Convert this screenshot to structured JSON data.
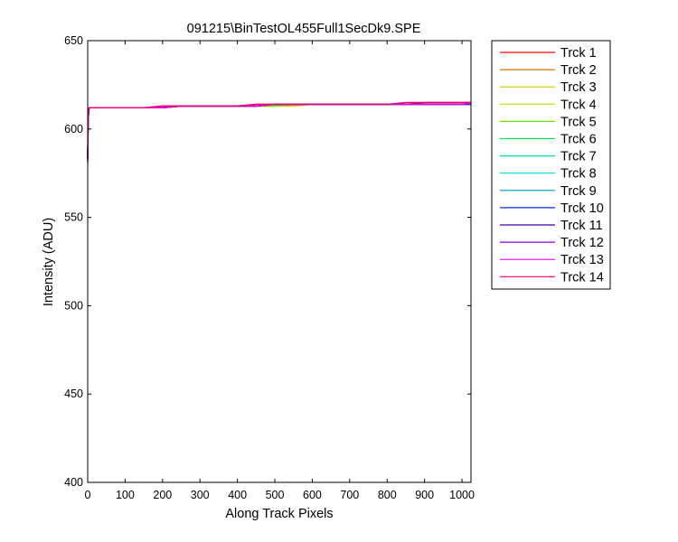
{
  "chart_data": {
    "type": "line",
    "title": "091215\\BinTestOL455Full1SecDk9.SPE",
    "xlabel": "Along Track Pixels",
    "ylabel": "Intensity (ADU)",
    "xlim": [
      0,
      1024
    ],
    "ylim": [
      400,
      650
    ],
    "xticks": [
      0,
      100,
      200,
      300,
      400,
      500,
      600,
      700,
      800,
      900,
      1000
    ],
    "yticks": [
      400,
      450,
      500,
      550,
      600,
      650
    ],
    "grid": false,
    "legend_position": "outside-right-top",
    "x": [
      0,
      1,
      2,
      3,
      4,
      5,
      10,
      20,
      50,
      100,
      150,
      200,
      250,
      300,
      350,
      400,
      450,
      500,
      550,
      600,
      650,
      700,
      750,
      800,
      850,
      900,
      950,
      1000,
      1023
    ],
    "series": [
      {
        "name": "Trck 1",
        "color": "#ff0000",
        "values": [
          581,
          600,
          608,
          611,
          612,
          612,
          612,
          612,
          612,
          612,
          612,
          613,
          613,
          613,
          613,
          613,
          614,
          614,
          614,
          614,
          614,
          614,
          614,
          614,
          614,
          615,
          615,
          615,
          615
        ]
      },
      {
        "name": "Trck 2",
        "color": "#e07000",
        "values": [
          582,
          600,
          608,
          610,
          611,
          612,
          612,
          612,
          612,
          612,
          612,
          612,
          613,
          613,
          613,
          613,
          613,
          613,
          614,
          614,
          614,
          614,
          614,
          614,
          614,
          614,
          614,
          614,
          614
        ]
      },
      {
        "name": "Trck 3",
        "color": "#d4c400",
        "values": [
          582,
          601,
          608,
          611,
          611,
          612,
          612,
          612,
          612,
          612,
          612,
          612,
          613,
          613,
          613,
          613,
          613,
          613,
          613,
          614,
          614,
          614,
          614,
          614,
          614,
          614,
          614,
          614,
          614
        ]
      },
      {
        "name": "Trck 4",
        "color": "#b8e000",
        "values": [
          583,
          601,
          608,
          611,
          611,
          612,
          612,
          612,
          612,
          612,
          612,
          612,
          613,
          613,
          613,
          613,
          613,
          613,
          614,
          614,
          614,
          614,
          614,
          614,
          614,
          614,
          614,
          614,
          614
        ]
      },
      {
        "name": "Trck 5",
        "color": "#70e000",
        "values": [
          583,
          601,
          608,
          611,
          612,
          612,
          612,
          612,
          612,
          612,
          612,
          612,
          613,
          613,
          613,
          613,
          613,
          613,
          614,
          614,
          614,
          614,
          614,
          614,
          614,
          614,
          614,
          614,
          614
        ]
      },
      {
        "name": "Trck 6",
        "color": "#00e050",
        "values": [
          583,
          601,
          608,
          611,
          612,
          612,
          612,
          612,
          612,
          612,
          612,
          612,
          613,
          613,
          613,
          613,
          613,
          614,
          614,
          614,
          614,
          614,
          614,
          614,
          614,
          614,
          614,
          614,
          614
        ]
      },
      {
        "name": "Trck 7",
        "color": "#00e0a0",
        "values": [
          583,
          601,
          608,
          611,
          612,
          612,
          612,
          612,
          612,
          612,
          612,
          612,
          613,
          613,
          613,
          613,
          613,
          614,
          614,
          614,
          614,
          614,
          614,
          614,
          614,
          614,
          614,
          614,
          614
        ]
      },
      {
        "name": "Trck 8",
        "color": "#00d8d8",
        "values": [
          583,
          601,
          608,
          611,
          612,
          612,
          612,
          612,
          612,
          612,
          612,
          612,
          613,
          613,
          613,
          613,
          613,
          614,
          614,
          614,
          614,
          614,
          614,
          614,
          614,
          614,
          614,
          614,
          614
        ]
      },
      {
        "name": "Trck 9",
        "color": "#0098c0",
        "values": [
          583,
          601,
          608,
          611,
          612,
          612,
          612,
          612,
          612,
          612,
          612,
          612,
          613,
          613,
          613,
          613,
          613,
          614,
          614,
          614,
          614,
          614,
          614,
          614,
          614,
          614,
          614,
          614,
          614
        ]
      },
      {
        "name": "Trck 10",
        "color": "#0030e0",
        "values": [
          583,
          601,
          608,
          611,
          612,
          612,
          612,
          612,
          612,
          612,
          612,
          612,
          613,
          613,
          613,
          613,
          613,
          614,
          614,
          614,
          614,
          614,
          614,
          614,
          614,
          614,
          614,
          614,
          614
        ]
      },
      {
        "name": "Trck 11",
        "color": "#4000b0",
        "values": [
          583,
          601,
          608,
          611,
          612,
          612,
          612,
          612,
          612,
          612,
          612,
          612,
          613,
          613,
          613,
          613,
          613,
          614,
          614,
          614,
          614,
          614,
          614,
          614,
          614,
          614,
          614,
          614,
          614
        ]
      },
      {
        "name": "Trck 12",
        "color": "#9000e0",
        "values": [
          583,
          601,
          608,
          611,
          612,
          612,
          612,
          612,
          612,
          612,
          612,
          612,
          613,
          613,
          613,
          613,
          613,
          614,
          614,
          614,
          614,
          614,
          614,
          614,
          614,
          614,
          614,
          614,
          614
        ]
      },
      {
        "name": "Trck 13",
        "color": "#e000e0",
        "values": [
          583,
          601,
          608,
          611,
          612,
          612,
          612,
          612,
          612,
          612,
          612,
          612,
          613,
          613,
          613,
          613,
          613,
          614,
          614,
          614,
          614,
          614,
          614,
          614,
          614,
          614,
          614,
          614,
          615
        ]
      },
      {
        "name": "Trck 14",
        "color": "#f00070",
        "values": [
          582,
          601,
          608,
          611,
          612,
          612,
          612,
          612,
          612,
          612,
          612,
          613,
          613,
          613,
          613,
          613,
          614,
          614,
          614,
          614,
          614,
          614,
          614,
          614,
          615,
          615,
          615,
          615,
          615
        ]
      }
    ]
  }
}
